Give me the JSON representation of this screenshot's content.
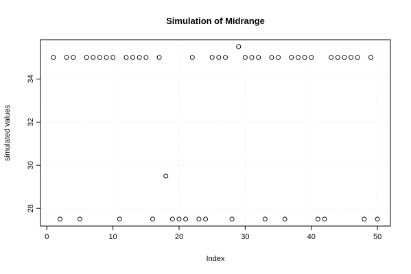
{
  "chart_data": {
    "type": "scatter",
    "title": "Simulation of Midrange",
    "xlabel": "Index",
    "ylabel": "simulated values",
    "xlim": [
      -0.96,
      51.96
    ],
    "ylim": [
      27.18,
      35.82
    ],
    "xticks": [
      0,
      10,
      20,
      30,
      40,
      50
    ],
    "yticks": [
      28,
      30,
      32,
      34
    ],
    "grid": true,
    "x": [
      1,
      2,
      3,
      4,
      5,
      6,
      7,
      8,
      9,
      10,
      11,
      12,
      13,
      14,
      15,
      16,
      17,
      18,
      19,
      20,
      21,
      22,
      23,
      24,
      25,
      26,
      27,
      28,
      29,
      30,
      31,
      32,
      33,
      34,
      35,
      36,
      37,
      38,
      39,
      40,
      41,
      42,
      43,
      44,
      45,
      46,
      47,
      48,
      49,
      50
    ],
    "y": [
      35,
      27.5,
      35,
      35,
      27.5,
      35,
      35,
      35,
      35,
      35,
      27.5,
      35,
      35,
      35,
      35,
      27.5,
      35,
      29.5,
      27.5,
      27.5,
      27.5,
      35,
      27.5,
      27.5,
      35,
      35,
      35,
      27.5,
      35.5,
      35,
      35,
      35,
      27.5,
      35,
      35,
      27.5,
      35,
      35,
      35,
      35,
      27.5,
      27.5,
      35,
      35,
      35,
      35,
      35,
      27.5,
      35,
      27.5
    ]
  }
}
